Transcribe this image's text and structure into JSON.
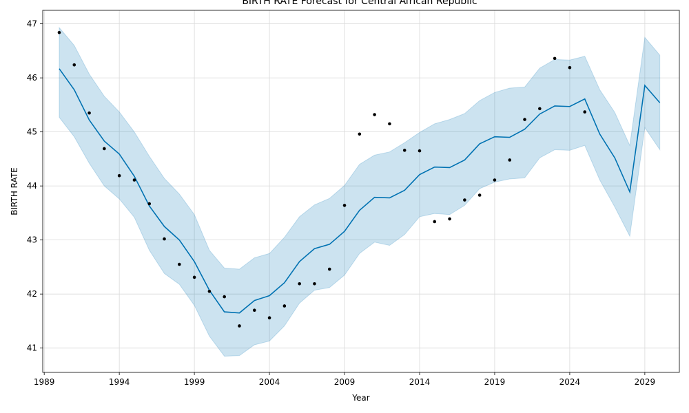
{
  "chart_data": {
    "type": "line",
    "title": "BIRTH RATE Forecast for Central African Republic",
    "xlabel": "Year",
    "ylabel": "BIRTH RATE",
    "xlim": [
      1988.9,
      2031.3
    ],
    "ylim": [
      40.55,
      47.25
    ],
    "grid": true,
    "x_ticks": [
      1989,
      1994,
      1999,
      2004,
      2009,
      2014,
      2019,
      2024,
      2029
    ],
    "x_tick_labels": [
      "1989",
      "1994",
      "1999",
      "2004",
      "2009",
      "2014",
      "2019",
      "2024",
      "2029"
    ],
    "y_ticks": [
      41,
      42,
      43,
      44,
      45,
      46,
      47
    ],
    "y_tick_labels": [
      "41",
      "42",
      "43",
      "44",
      "45",
      "46",
      "47"
    ],
    "colors": {
      "forecast_line": "#0072B2",
      "uncertainty_band": "#0072B2",
      "observed_points": "#000000"
    },
    "series": [
      {
        "role": "observed",
        "style": "points",
        "x": [
          1990,
          1991,
          1992,
          1993,
          1994,
          1995,
          1996,
          1997,
          1998,
          1999,
          2000,
          2001,
          2002,
          2003,
          2004,
          2005,
          2006,
          2007,
          2008,
          2009,
          2010,
          2011,
          2012,
          2013,
          2014,
          2015,
          2016,
          2017,
          2018,
          2019,
          2020,
          2021,
          2022,
          2023,
          2024,
          2025
        ],
        "y": [
          46.84,
          46.24,
          45.35,
          44.69,
          44.19,
          44.11,
          43.67,
          43.02,
          42.55,
          42.31,
          42.05,
          41.95,
          41.41,
          41.7,
          41.56,
          41.78,
          42.19,
          42.19,
          42.46,
          43.64,
          44.96,
          45.32,
          45.15,
          44.66,
          44.65,
          43.34,
          43.39,
          43.74,
          43.83,
          44.11,
          44.48,
          45.23,
          45.43,
          46.36,
          46.19,
          45.37
        ]
      },
      {
        "role": "forecast",
        "style": "line",
        "x": [
          1990,
          1991,
          1992,
          1993,
          1994,
          1995,
          1996,
          1997,
          1998,
          1999,
          2000,
          2001,
          2002,
          2003,
          2004,
          2005,
          2006,
          2007,
          2008,
          2009,
          2010,
          2011,
          2012,
          2013,
          2014,
          2015,
          2016,
          2017,
          2018,
          2019,
          2020,
          2021,
          2022,
          2023,
          2024,
          2025,
          2026,
          2027,
          2028,
          2029,
          2030
        ],
        "y": [
          46.17,
          45.78,
          45.22,
          44.83,
          44.59,
          44.18,
          43.63,
          43.25,
          43.0,
          42.6,
          42.07,
          41.67,
          41.65,
          41.88,
          41.97,
          42.21,
          42.6,
          42.84,
          42.92,
          43.16,
          43.55,
          43.79,
          43.78,
          43.92,
          44.21,
          44.35,
          44.34,
          44.48,
          44.78,
          44.91,
          44.9,
          45.05,
          45.33,
          45.48,
          45.47,
          45.61,
          44.96,
          44.52,
          43.89,
          45.86,
          45.54
        ]
      },
      {
        "role": "uncertainty_interval",
        "style": "band",
        "x": [
          1990,
          1991,
          1992,
          1993,
          1994,
          1995,
          1996,
          1997,
          1998,
          1999,
          2000,
          2001,
          2002,
          2003,
          2004,
          2005,
          2006,
          2007,
          2008,
          2009,
          2010,
          2011,
          2012,
          2013,
          2014,
          2015,
          2016,
          2017,
          2018,
          2019,
          2020,
          2021,
          2022,
          2023,
          2024,
          2025,
          2026,
          2027,
          2028,
          2029,
          2030
        ],
        "lower": [
          45.27,
          44.91,
          44.42,
          44.0,
          43.76,
          43.42,
          42.81,
          42.38,
          42.18,
          41.79,
          41.22,
          40.85,
          40.86,
          41.06,
          41.13,
          41.41,
          41.83,
          42.07,
          42.12,
          42.35,
          42.75,
          42.96,
          42.9,
          43.1,
          43.43,
          43.49,
          43.47,
          43.64,
          43.95,
          44.07,
          44.13,
          44.15,
          44.52,
          44.67,
          44.66,
          44.75,
          44.11,
          43.61,
          43.07,
          45.08,
          44.67
        ],
        "upper": [
          46.93,
          46.6,
          46.07,
          45.66,
          45.37,
          45.0,
          44.55,
          44.14,
          43.85,
          43.47,
          42.81,
          42.48,
          42.46,
          42.67,
          42.75,
          43.05,
          43.43,
          43.65,
          43.77,
          44.01,
          44.4,
          44.57,
          44.63,
          44.8,
          44.99,
          45.15,
          45.23,
          45.34,
          45.58,
          45.73,
          45.81,
          45.83,
          46.18,
          46.34,
          46.33,
          46.4,
          45.78,
          45.36,
          44.75,
          46.75,
          46.42
        ]
      }
    ]
  }
}
